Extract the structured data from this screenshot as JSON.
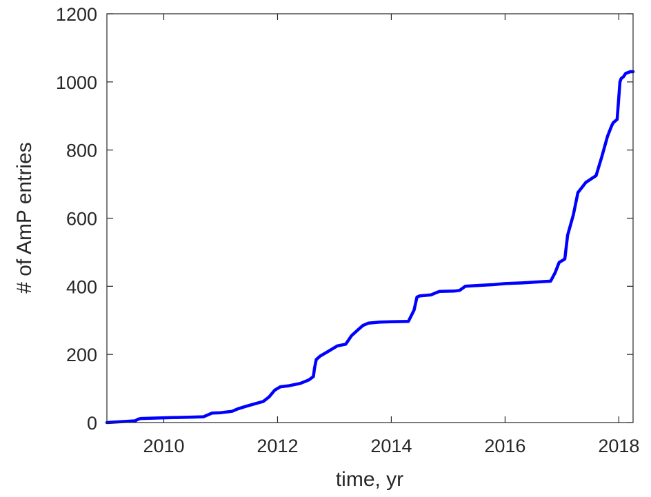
{
  "chart_data": {
    "type": "line",
    "title": "",
    "xlabel": "time, yr",
    "ylabel": "# of AmP entries",
    "xlim": [
      2009,
      2018.25
    ],
    "ylim": [
      0,
      1200
    ],
    "xticks": [
      2010,
      2012,
      2014,
      2016,
      2018
    ],
    "yticks": [
      0,
      200,
      400,
      600,
      800,
      1000,
      1200
    ],
    "grid": false,
    "box": true,
    "colors": {
      "line": "#0000ff",
      "axis": "#262626",
      "background": "#ffffff"
    },
    "series": [
      {
        "x": [
          2009.0,
          2009.3,
          2009.5,
          2009.55,
          2009.6,
          2010.0,
          2010.5,
          2010.7,
          2010.85,
          2011.0,
          2011.2,
          2011.3,
          2011.45,
          2011.6,
          2011.75,
          2011.85,
          2011.95,
          2012.05,
          2012.2,
          2012.4,
          2012.55,
          2012.63,
          2012.65,
          2012.68,
          2012.75,
          2012.85,
          2012.95,
          2013.05,
          2013.2,
          2013.3,
          2013.4,
          2013.5,
          2013.6,
          2013.8,
          2014.0,
          2014.3,
          2014.4,
          2014.45,
          2014.5,
          2014.7,
          2014.8,
          2014.85,
          2015.1,
          2015.2,
          2015.3,
          2015.5,
          2015.8,
          2016.0,
          2016.3,
          2016.5,
          2016.8,
          2016.88,
          2016.95,
          2017.05,
          2017.1,
          2017.2,
          2017.28,
          2017.35,
          2017.42,
          2017.6,
          2017.7,
          2017.8,
          2017.87,
          2017.9,
          2017.97,
          2018.02,
          2018.04,
          2018.08,
          2018.12,
          2018.2,
          2018.25
        ],
        "y": [
          0,
          3,
          5,
          10,
          12,
          14,
          16,
          17,
          28,
          29,
          33,
          40,
          48,
          55,
          62,
          75,
          95,
          105,
          108,
          115,
          125,
          135,
          160,
          185,
          195,
          205,
          215,
          225,
          230,
          255,
          270,
          285,
          292,
          295,
          296,
          297,
          330,
          368,
          372,
          375,
          382,
          385,
          386,
          388,
          400,
          402,
          405,
          408,
          410,
          412,
          415,
          440,
          470,
          480,
          550,
          610,
          675,
          690,
          705,
          725,
          780,
          840,
          870,
          880,
          890,
          1000,
          1010,
          1015,
          1025,
          1030,
          1030
        ]
      }
    ]
  }
}
